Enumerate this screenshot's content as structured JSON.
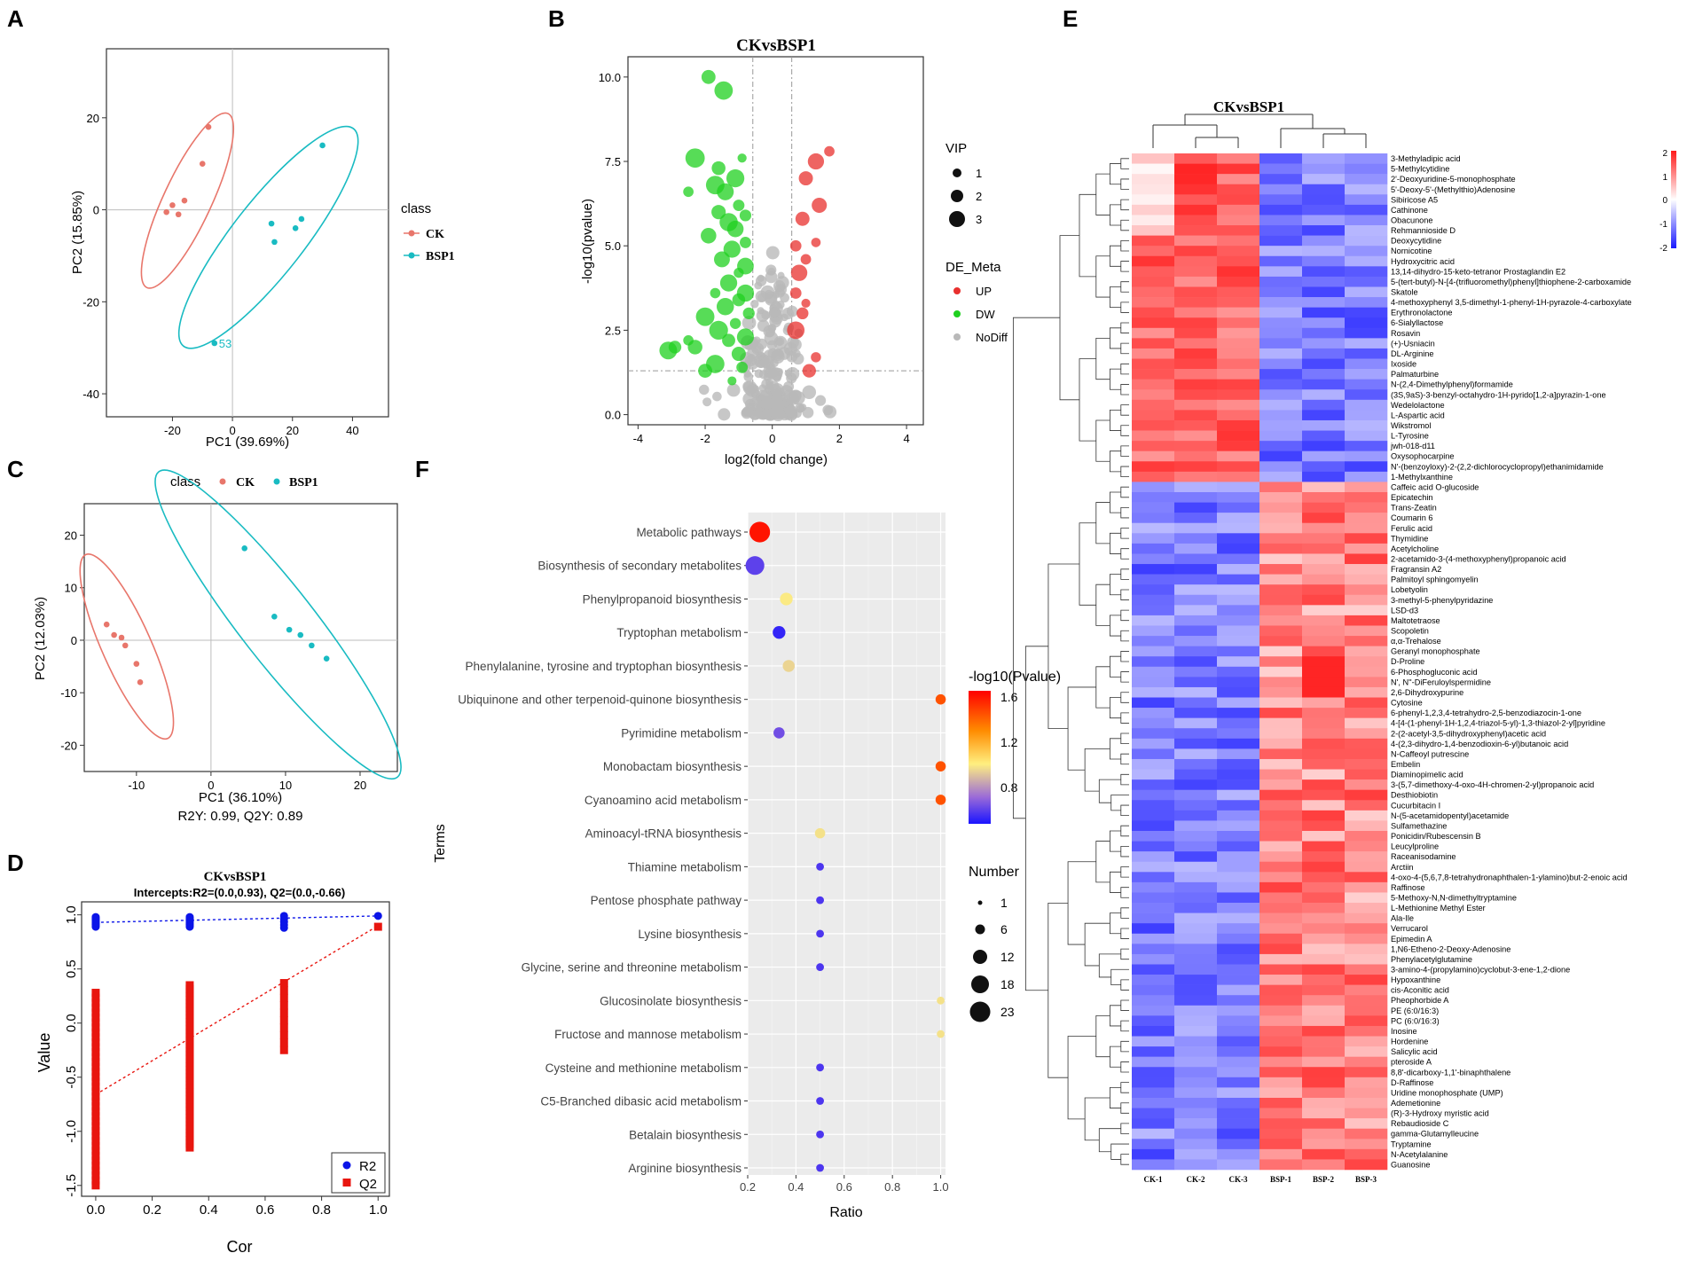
{
  "chart_data": [
    {
      "panel": "A",
      "type": "scatter",
      "title": "",
      "xlabel": "PC1 (39.69%)",
      "ylabel": "PC2 (15.85%)",
      "xlim": [
        -42,
        52
      ],
      "ylim": [
        -45,
        35
      ],
      "xticks": [
        -20,
        0,
        20,
        40
      ],
      "yticks": [
        -40,
        -20,
        0,
        20
      ],
      "legend_title": "class",
      "series": [
        {
          "name": "CK",
          "color": "#e8766b",
          "x": [
            -22,
            -20,
            -18,
            -16,
            -10,
            -8
          ],
          "y": [
            -0.5,
            1,
            -1,
            2,
            10,
            18
          ],
          "ellipse": {
            "cx": -15,
            "cy": 2,
            "rx": 32,
            "ry": 8,
            "angle": 65
          }
        },
        {
          "name": "BSP1",
          "color": "#19bbc2",
          "x": [
            -6,
            13,
            14,
            21,
            23,
            30
          ],
          "y": [
            -29,
            -3,
            -7,
            -4,
            -2,
            14
          ],
          "ellipse": {
            "cx": 12,
            "cy": -6,
            "rx": 46,
            "ry": 12,
            "angle": 52
          }
        }
      ],
      "annotations": [
        "53"
      ]
    },
    {
      "panel": "B",
      "type": "scatter",
      "title": "CKvsBSP1",
      "xlabel": "log2(fold change)",
      "ylabel": "-log10(pvalue)",
      "xlim": [
        -4.3,
        4.5
      ],
      "ylim": [
        -0.3,
        10.6
      ],
      "xticks": [
        -4,
        -2,
        0,
        2,
        4
      ],
      "yticks": [
        0.0,
        2.5,
        5.0,
        7.5,
        10.0
      ],
      "thresholds": {
        "fc": [
          -0.58,
          0.58
        ],
        "p": 1.3
      },
      "legend_vip_title": "VIP",
      "legend_vip": [
        "1",
        "2",
        "3"
      ],
      "legend_de_title": "DE_Meta",
      "legend_de": [
        {
          "name": "UP",
          "color": "#e8302e"
        },
        {
          "name": "DW",
          "color": "#1fd01f"
        },
        {
          "name": "NoDiff",
          "color": "#b9b9b9"
        }
      ]
    },
    {
      "panel": "C",
      "type": "scatter",
      "title": "",
      "xlabel": "PC1 (36.10%)",
      "ylabel": "PC2 (12.03%)",
      "subtitle": "R2Y: 0.99, Q2Y: 0.89",
      "xlim": [
        -17,
        25
      ],
      "ylim": [
        -25,
        26
      ],
      "xticks": [
        -10,
        0,
        10,
        20
      ],
      "yticks": [
        -20,
        -10,
        0,
        10,
        20
      ],
      "legend_title": "class",
      "series": [
        {
          "name": "CK",
          "color": "#e8766b",
          "x": [
            -14,
            -13,
            -12,
            -11.5,
            -10,
            -9.5
          ],
          "y": [
            3,
            1,
            0.5,
            -1,
            -4.5,
            -8
          ],
          "ellipse": {
            "cx": -11.3,
            "cy": -1.2,
            "rx": 13.5,
            "ry": 3.3,
            "angle": -66
          }
        },
        {
          "name": "BSP1",
          "color": "#19bbc2",
          "x": [
            4.5,
            8.5,
            10.5,
            12,
            13.5,
            15.5
          ],
          "y": [
            17.5,
            4.5,
            2,
            1,
            -1,
            -3.5
          ],
          "ellipse": {
            "cx": 9,
            "cy": 3,
            "rx": 26,
            "ry": 5,
            "angle": -52
          }
        }
      ]
    },
    {
      "panel": "D",
      "type": "scatter",
      "title": "CKvsBSP1",
      "subtitle": "Intercepts:R2=(0.0,0.93), Q2=(0.0,-0.66)",
      "xlabel": "Cor",
      "ylabel": "Value",
      "xlim": [
        -0.05,
        1.04
      ],
      "ylim": [
        -1.6,
        1.12
      ],
      "xticks": [
        0.0,
        0.2,
        0.4,
        0.6,
        0.8,
        1.0
      ],
      "yticks": [
        -1.5,
        -1.0,
        -0.5,
        0.0,
        0.5,
        1.0
      ],
      "legend": [
        {
          "name": "R2",
          "color": "#0b14e8"
        },
        {
          "name": "Q2",
          "color": "#e8160f"
        }
      ],
      "lines": {
        "r2": {
          "intercept": 0.93,
          "slope": 0.06
        },
        "q2": {
          "intercept": -0.66,
          "slope": 1.56
        }
      },
      "r2_x": [
        0,
        0.333,
        0.667,
        1.0
      ],
      "q2_x": [
        0,
        0.333,
        0.667,
        1.0
      ]
    },
    {
      "panel": "F",
      "type": "scatter",
      "title": "",
      "xlabel": "Ratio",
      "ylabel": "Terms",
      "xlim": [
        0.2,
        1.02
      ],
      "xticks": [
        0.2,
        0.4,
        0.6,
        0.8,
        1.0
      ],
      "terms": [
        {
          "name": "Metabolic pathways",
          "ratio": 0.25,
          "number": 23,
          "p": 1.65
        },
        {
          "name": "Biosynthesis of secondary metabolites",
          "ratio": 0.23,
          "number": 18,
          "p": 0.58
        },
        {
          "name": "Phenylpropanoid biosynthesis",
          "ratio": 0.36,
          "number": 6,
          "p": 1.0
        },
        {
          "name": "Tryptophan metabolism",
          "ratio": 0.33,
          "number": 6,
          "p": 0.5
        },
        {
          "name": "Phenylalanine, tyrosine and tryptophan biosynthesis",
          "ratio": 0.37,
          "number": 5,
          "p": 0.95
        },
        {
          "name": "Ubiquinone and other terpenoid-quinone biosynthesis",
          "ratio": 1.0,
          "number": 3,
          "p": 1.48
        },
        {
          "name": "Pyrimidine metabolism",
          "ratio": 0.33,
          "number": 4,
          "p": 0.62
        },
        {
          "name": "Monobactam biosynthesis",
          "ratio": 1.0,
          "number": 3,
          "p": 1.48
        },
        {
          "name": "Cyanoamino acid metabolism",
          "ratio": 1.0,
          "number": 3,
          "p": 1.48
        },
        {
          "name": "Aminoacyl-tRNA biosynthesis",
          "ratio": 0.5,
          "number": 3,
          "p": 0.98
        },
        {
          "name": "Thiamine metabolism",
          "ratio": 0.5,
          "number": 1,
          "p": 0.55
        },
        {
          "name": "Pentose phosphate pathway",
          "ratio": 0.5,
          "number": 1,
          "p": 0.55
        },
        {
          "name": "Lysine biosynthesis",
          "ratio": 0.5,
          "number": 1,
          "p": 0.55
        },
        {
          "name": "Glycine, serine and threonine metabolism",
          "ratio": 0.5,
          "number": 1,
          "p": 0.55
        },
        {
          "name": "Glucosinolate biosynthesis",
          "ratio": 1.0,
          "number": 1,
          "p": 0.98
        },
        {
          "name": "Fructose and mannose metabolism",
          "ratio": 1.0,
          "number": 1,
          "p": 0.98
        },
        {
          "name": "Cysteine and methionine metabolism",
          "ratio": 0.5,
          "number": 1,
          "p": 0.55
        },
        {
          "name": "C5-Branched dibasic acid metabolism",
          "ratio": 0.5,
          "number": 1,
          "p": 0.55
        },
        {
          "name": "Betalain biosynthesis",
          "ratio": 0.5,
          "number": 1,
          "p": 0.55
        },
        {
          "name": "Arginine biosynthesis",
          "ratio": 0.5,
          "number": 1,
          "p": 0.55
        }
      ],
      "color_title": "-log10(Pvalue)",
      "color_ticks": [
        "1.6",
        "1.2",
        "0.8"
      ],
      "color_range": [
        0.45,
        1.7
      ],
      "size_title": "Number",
      "size_ticks": [
        "1",
        "6",
        "12",
        "18",
        "23"
      ]
    },
    {
      "panel": "E",
      "type": "heatmap",
      "title": "CKvsBSP1",
      "columns": [
        "CK-1",
        "CK-2",
        "CK-3",
        "BSP-1",
        "BSP-2",
        "BSP-3"
      ],
      "scale_ticks": [
        "2",
        "1",
        "0",
        "-1",
        "-2"
      ],
      "rows": [
        "3-Methyladipic acid",
        "5-Methylcytidine",
        "2'-Deoxyuridine-5-monophosphate",
        "5'-Deoxy-5'-(Methylthio)Adenosine",
        "Sibiricose A5",
        "Cathinone",
        "Obacunone",
        "Rehmannioside D",
        "Deoxycytidine",
        "Nornicotine",
        "Hydroxycitric acid",
        "13,14-dihydro-15-keto-tetranor Prostaglandin E2",
        "5-(tert-butyl)-N-[4-(trifluoromethyl)phenyl]thiophene-2-carboxamide",
        "Skatole",
        "4-methoxyphenyl 3,5-dimethyl-1-phenyl-1H-pyrazole-4-carboxylate",
        "Erythronolactone",
        "6-Sialyllactose",
        "Rosavin",
        "(+)-Usniacin",
        "DL-Arginine",
        "Ixoside",
        "Palmaturbine",
        "N-(2,4-Dimethylphenyl)formamide",
        "(3S,9aS)-3-benzyl-octahydro-1H-pyrido[1,2-a]pyrazin-1-one",
        "Wedelolactone",
        "L-Aspartic acid",
        "Wikstromol",
        "L-Tyrosine",
        "jwh-018-d11",
        "Oxysophocarpine",
        "N'-(benzoyloxy)-2-(2,2-dichlorocyclopropyl)ethanimidamide",
        "1-Methylxanthine",
        "Caffeic acid O-glucoside",
        "Epicatechin",
        "Trans-Zeatin",
        "Coumarin 6",
        "Ferulic acid",
        "Thymidine",
        "Acetylcholine",
        "2-acetamido-3-(4-methoxyphenyl)propanoic acid",
        "Fragransin A2",
        "Palmitoyl sphingomyelin",
        "Lobetyolin",
        "3-methyl-5-phenylpyridazine",
        "LSD-d3",
        "Maltotetraose",
        "Scopoletin",
        "α,α-Trehalose",
        "Geranyl monophosphate",
        "D-Proline",
        "6-Phosphogluconic acid",
        "N', N''-DiFeruloylspermidine",
        "2,6-Dihydroxypurine",
        "Cytosine",
        "6-phenyl-1,2,3,4-tetrahydro-2,5-benzodiazocin-1-one",
        "4-[4-(1-phenyl-1H-1,2,4-triazol-5-yl)-1,3-thiazol-2-yl]pyridine",
        "2-(2-acetyl-3,5-dihydroxyphenyl)acetic acid",
        "4-(2,3-dihydro-1,4-benzodioxin-6-yl)butanoic acid",
        "N-Caffeoyl putrescine",
        "Embelin",
        "Diaminopimelic acid",
        "3-(5,7-dimethoxy-4-oxo-4H-chromen-2-yl)propanoic acid",
        "Desthiobiotin",
        "Cucurbitacin I",
        "N-(5-acetamidopentyl)acetamide",
        "Sulfamethazine",
        "Ponicidin/Rubescensin B",
        "Leucylproline",
        "Raceanisodamine",
        "Arctiin",
        "4-oxo-4-(5,6,7,8-tetrahydronaphthalen-1-ylamino)but-2-enoic acid",
        "Raffinose",
        "5-Methoxy-N,N-dimethyltryptamine",
        "L-Methionine Methyl Ester",
        "Ala-Ile",
        "Verrucarol",
        "Epimedin A",
        "1,N6-Etheno-2-Deoxy-Adenosine",
        "Phenylacetylglutamine",
        "3-amino-4-(propylamino)cyclobut-3-ene-1,2-dione",
        "Hypoxanthine",
        "cis-Aconitic acid",
        "Pheophorbide A",
        "PE (6:0/16:3)",
        "PC (6:0/16:3)",
        "Inosine",
        "Hordenine",
        "Salicylic acid",
        "pteroside A",
        "8,8'-dicarboxy-1,1'-binaphthalene",
        "D-Raffinose",
        "Uridine monophosphate (UMP)",
        "Ademetionine",
        "(R)-3-Hydroxy myristic acid",
        "Rebaudioside C",
        "gamma-Glutamylleucine",
        "Tryptamine",
        "N-Acetylalanine",
        "Guanosine"
      ]
    }
  ],
  "panel_labels": {
    "a": "A",
    "b": "B",
    "c": "C",
    "d": "D",
    "e": "E",
    "f": "F"
  },
  "legend_labels": {
    "class": "class",
    "ck": "CK",
    "bsp1": "BSP1",
    "point53": "53",
    "vip": "VIP",
    "vip1": "1",
    "vip2": "2",
    "vip3": "3",
    "de_meta": "DE_Meta",
    "up": "UP",
    "dw": "DW",
    "nodiff": "NoDiff",
    "r2": "R2",
    "q2": "Q2",
    "pval": "-log10(Pvalue)",
    "p16": "1.6",
    "p12": "1.2",
    "p08": "0.8",
    "number": "Number",
    "n1": "1",
    "n6": "6",
    "n12": "12",
    "n18": "18",
    "n23": "23",
    "hm2": "2",
    "hm1": "1",
    "hm0": "0",
    "hmm1": "-1",
    "hmm2": "-2"
  },
  "colors": {
    "ck": "#e8766b",
    "bsp1": "#19bbc2",
    "up": "#e8302e",
    "dw": "#1fd01f",
    "nodiff": "#b9b9b9",
    "r2": "#0b14e8",
    "q2": "#e8160f",
    "hm_high": "#ff1a1a",
    "hm_mid": "#ffffff",
    "hm_low": "#1a1aff"
  }
}
